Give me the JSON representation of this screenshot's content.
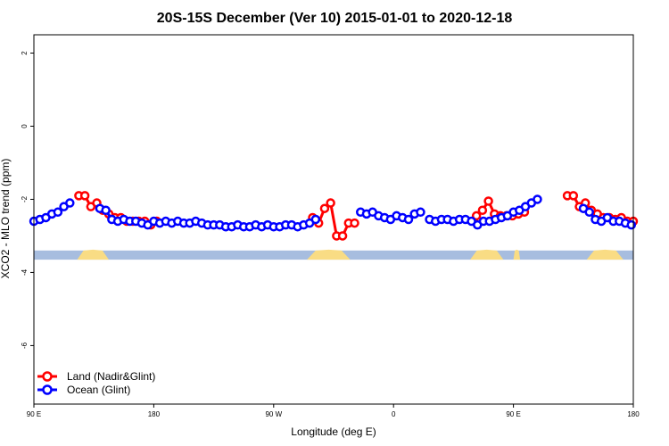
{
  "chart_data": {
    "type": "line",
    "title": "20S-15S December (Ver 10)   2015-01-01 to 2020-12-18",
    "xlabel": "Longitude (deg E)",
    "ylabel": "XCO2 - MLO trend (ppm)",
    "xlim": [
      90,
      450
    ],
    "ylim": [
      -7.6,
      2.5
    ],
    "x_ticks": [
      90,
      162,
      234,
      306,
      378,
      450
    ],
    "x_tick_labels": [
      "90 E",
      "180",
      "90 W",
      "0",
      "90 E",
      "180"
    ],
    "y_ticks": [
      2,
      0,
      -2,
      -4,
      -6
    ],
    "y_tick_labels": [
      "2",
      "0",
      "-2",
      "-4",
      "-6"
    ],
    "legend_position": "bottom-left",
    "series": [
      {
        "name": "Land (Nadir&Glint)",
        "color": "#ff0000",
        "points": [
          [
            117,
            -1.9
          ],
          [
            120.6,
            -1.9
          ],
          [
            124.2,
            -2.2
          ],
          [
            127.8,
            -2.1
          ],
          [
            131.4,
            -2.3
          ],
          [
            135,
            -2.4
          ],
          [
            138.6,
            -2.5
          ],
          [
            142.2,
            -2.5
          ],
          [
            145.8,
            -2.6
          ],
          [
            149.4,
            -2.6
          ],
          [
            153,
            -2.6
          ],
          [
            156.6,
            -2.6
          ],
          [
            160.2,
            -2.7
          ],
          [
            163.8,
            -2.6
          ],
          [
            257.4,
            -2.5
          ],
          [
            261,
            -2.65
          ],
          [
            264.6,
            -2.25
          ],
          [
            268.2,
            -2.1
          ],
          [
            271.8,
            -3.0
          ],
          [
            275.4,
            -3.0
          ],
          [
            279,
            -2.65
          ],
          [
            282.6,
            -2.65
          ],
          [
            355.8,
            -2.45
          ],
          [
            359.4,
            -2.3
          ],
          [
            363,
            -2.05
          ],
          [
            366.6,
            -2.4
          ],
          [
            370.2,
            -2.45
          ],
          [
            373.8,
            -2.45
          ],
          [
            377.4,
            -2.45
          ],
          [
            381,
            -2.4
          ],
          [
            384.6,
            -2.35
          ],
          [
            410.4,
            -1.9
          ],
          [
            414,
            -1.9
          ],
          [
            417.6,
            -2.2
          ],
          [
            421.2,
            -2.1
          ],
          [
            424.8,
            -2.3
          ],
          [
            428.4,
            -2.4
          ],
          [
            432,
            -2.5
          ],
          [
            435.6,
            -2.5
          ],
          [
            439.2,
            -2.55
          ],
          [
            442.8,
            -2.5
          ],
          [
            446.4,
            -2.6
          ],
          [
            450,
            -2.6
          ]
        ]
      },
      {
        "name": "Ocean (Glint)",
        "color": "#0000ff",
        "points": [
          [
            90,
            -2.6
          ],
          [
            93.6,
            -2.55
          ],
          [
            97.2,
            -2.5
          ],
          [
            100.8,
            -2.4
          ],
          [
            104.4,
            -2.35
          ],
          [
            108,
            -2.2
          ],
          [
            111.6,
            -2.1
          ],
          [
            129.6,
            -2.25
          ],
          [
            133.2,
            -2.3
          ],
          [
            136.8,
            -2.55
          ],
          [
            140.4,
            -2.6
          ],
          [
            144,
            -2.55
          ],
          [
            147.6,
            -2.6
          ],
          [
            151.2,
            -2.6
          ],
          [
            154.8,
            -2.65
          ],
          [
            158.4,
            -2.7
          ],
          [
            162,
            -2.6
          ],
          [
            165.6,
            -2.65
          ],
          [
            169.2,
            -2.6
          ],
          [
            172.8,
            -2.65
          ],
          [
            176.4,
            -2.6
          ],
          [
            180,
            -2.65
          ],
          [
            183.6,
            -2.65
          ],
          [
            187.2,
            -2.6
          ],
          [
            190.8,
            -2.65
          ],
          [
            194.4,
            -2.7
          ],
          [
            198,
            -2.7
          ],
          [
            201.6,
            -2.7
          ],
          [
            205.2,
            -2.75
          ],
          [
            208.8,
            -2.75
          ],
          [
            212.4,
            -2.7
          ],
          [
            216,
            -2.75
          ],
          [
            219.6,
            -2.75
          ],
          [
            223.2,
            -2.7
          ],
          [
            226.8,
            -2.75
          ],
          [
            230.4,
            -2.7
          ],
          [
            234,
            -2.75
          ],
          [
            237.6,
            -2.75
          ],
          [
            241.2,
            -2.7
          ],
          [
            244.8,
            -2.7
          ],
          [
            248.4,
            -2.75
          ],
          [
            252,
            -2.7
          ],
          [
            255.6,
            -2.65
          ],
          [
            259.2,
            -2.55
          ],
          [
            286.2,
            -2.35
          ],
          [
            289.8,
            -2.4
          ],
          [
            293.4,
            -2.35
          ],
          [
            297,
            -2.45
          ],
          [
            300.6,
            -2.5
          ],
          [
            304.2,
            -2.55
          ],
          [
            307.8,
            -2.45
          ],
          [
            311.4,
            -2.5
          ],
          [
            315,
            -2.55
          ],
          [
            318.6,
            -2.4
          ],
          [
            322.2,
            -2.35
          ],
          [
            327.6,
            -2.55
          ],
          [
            331.2,
            -2.6
          ],
          [
            334.8,
            -2.55
          ],
          [
            338.4,
            -2.55
          ],
          [
            342,
            -2.6
          ],
          [
            345.6,
            -2.55
          ],
          [
            349.2,
            -2.55
          ],
          [
            352.8,
            -2.6
          ],
          [
            356.4,
            -2.7
          ],
          [
            360,
            -2.6
          ],
          [
            363.6,
            -2.6
          ],
          [
            367.2,
            -2.55
          ],
          [
            370.8,
            -2.5
          ],
          [
            374.4,
            -2.45
          ],
          [
            378,
            -2.35
          ],
          [
            381.6,
            -2.3
          ],
          [
            385.2,
            -2.2
          ],
          [
            388.8,
            -2.1
          ],
          [
            392.4,
            -2.0
          ],
          [
            420,
            -2.25
          ],
          [
            423.6,
            -2.35
          ],
          [
            427.2,
            -2.55
          ],
          [
            430.8,
            -2.6
          ],
          [
            434.4,
            -2.5
          ],
          [
            438,
            -2.6
          ],
          [
            441.6,
            -2.6
          ],
          [
            445.2,
            -2.65
          ],
          [
            448.8,
            -2.7
          ]
        ]
      }
    ],
    "surface_band": {
      "y_range": [
        -3.65,
        -3.4
      ],
      "colors": {
        "ocean": "#a7bddf",
        "land": "#f9dc84"
      },
      "land_segments_lon": [
        [
          116,
          135
        ],
        [
          254,
          280
        ],
        [
          352,
          372
        ],
        [
          378,
          382
        ],
        [
          422,
          444
        ]
      ]
    }
  }
}
